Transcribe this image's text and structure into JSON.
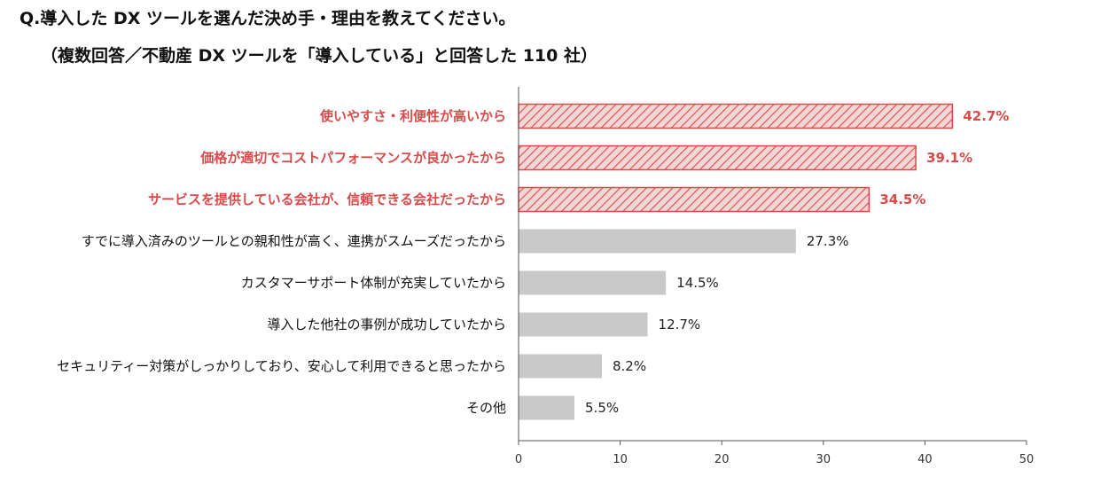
{
  "title": "Q.導入した DX ツールを選んだ決め手・理由を教えてください。",
  "subtitle": "（複数回答／不動産 DX ツールを「導入している」と回答した 110 社）",
  "colors": {
    "highlight": "#d94a4a",
    "highlight_fill": "#f3d2d2",
    "normal": "#c9c9c9"
  },
  "chart_data": {
    "type": "bar",
    "orientation": "horizontal",
    "title": "Q.導入した DX ツールを選んだ決め手・理由を教えてください。",
    "subtitle": "（複数回答／不動産 DX ツールを「導入している」と回答した 110 社）",
    "categories": [
      "使いやすさ・利便性が高いから",
      "価格が適切でコストパフォーマンスが良かったから",
      "サービスを提供している会社が、信頼できる会社だったから",
      "すでに導入済みのツールとの親和性が高く、連携がスムーズだったから",
      "カスタマーサポート体制が充実していたから",
      "導入した他社の事例が成功していたから",
      "セキュリティー対策がしっかりしており、安心して利用できると思ったから",
      "その他"
    ],
    "values": [
      42.7,
      39.1,
      34.5,
      27.3,
      14.5,
      12.7,
      8.2,
      5.5
    ],
    "value_labels": [
      "42.7%",
      "39.1%",
      "34.5%",
      "27.3%",
      "14.5%",
      "12.7%",
      "8.2%",
      "5.5%"
    ],
    "highlighted": [
      true,
      true,
      true,
      false,
      false,
      false,
      false,
      false
    ],
    "xlim": [
      0,
      50
    ],
    "xticks": [
      0,
      10,
      20,
      30,
      40,
      50
    ],
    "xtick_labels": [
      "0",
      "10",
      "20",
      "30",
      "40",
      "50"
    ],
    "xlabel": "",
    "ylabel": "",
    "grid": false
  }
}
